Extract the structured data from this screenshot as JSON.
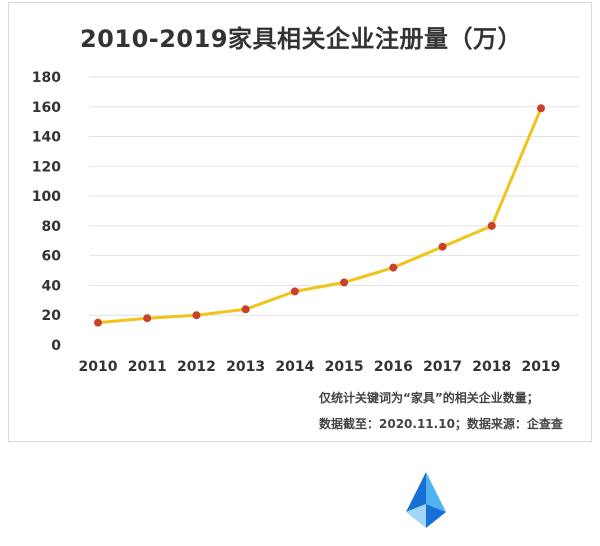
{
  "chart_data": {
    "type": "line",
    "title": "2010-2019家具相关企业注册量（万）",
    "xlabel": "",
    "ylabel": "",
    "categories": [
      "2010",
      "2011",
      "2012",
      "2013",
      "2014",
      "2015",
      "2016",
      "2017",
      "2018",
      "2019"
    ],
    "series": [
      {
        "values": [
          15,
          18,
          20,
          24,
          36,
          42,
          52,
          66,
          80,
          159
        ]
      }
    ],
    "ylim": [
      0,
      180
    ],
    "yticks": [
      0,
      20,
      40,
      60,
      80,
      100,
      120,
      140,
      160,
      180
    ],
    "grid": true,
    "legend": "none",
    "colors": {
      "line": "#f0c419",
      "marker": "#c9412a",
      "grid": "#e2e2e2",
      "text": "#333333"
    }
  },
  "notes": {
    "line1": "仅统计关键词为“家具”的相关企业数量；",
    "line2": "数据截至：2020.11.10；数据来源：企查查"
  },
  "logo": {
    "icon": "triangle-logo-icon",
    "colors": [
      "#1a6fd6",
      "#4fb4f0",
      "#9fd6fa"
    ]
  }
}
